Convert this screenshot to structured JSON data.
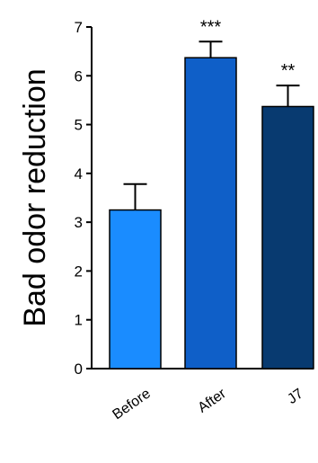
{
  "chart_data": {
    "type": "bar",
    "title": "",
    "xlabel": "",
    "ylabel": "Bad odor reduction",
    "ylim": [
      0,
      7
    ],
    "yticks": [
      "0",
      "1",
      "2",
      "3",
      "4",
      "5",
      "6",
      "7"
    ],
    "categories": [
      "Before",
      "After",
      "J7"
    ],
    "values": [
      3.25,
      6.37,
      5.37
    ],
    "errors": [
      0.53,
      0.33,
      0.43
    ],
    "significance": [
      "",
      "***",
      "**"
    ],
    "colors": [
      "#1a8cff",
      "#0f5fc8",
      "#083a70"
    ],
    "grid": false
  }
}
